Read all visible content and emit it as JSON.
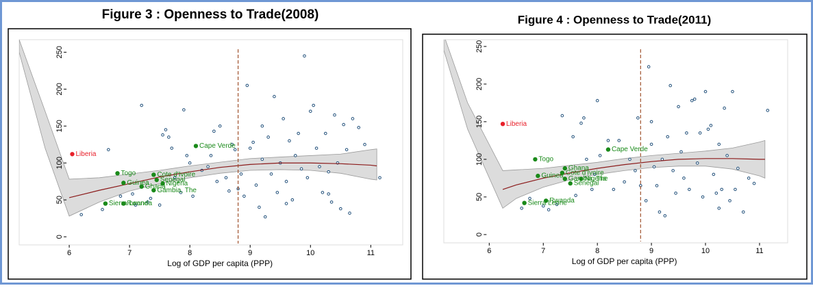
{
  "chart_data": [
    {
      "type": "scatter",
      "title": "Figure 3 :  Openness to Trade(2008)",
      "xlabel": "Log of GDP per capita (PPP)",
      "xlim": [
        5.17,
        11.53
      ],
      "ylim": [
        -11,
        267
      ],
      "xticks": [
        6,
        7,
        8,
        9,
        10,
        11
      ],
      "yticks": [
        0,
        50,
        100,
        150,
        200,
        250
      ],
      "vline": 8.8,
      "vline_color": "#a0522d",
      "points": {
        "color": "#1f4e79",
        "x": [
          6.2,
          6.55,
          6.65,
          6.85,
          7.05,
          7.1,
          7.2,
          7.3,
          7.35,
          7.5,
          7.55,
          7.6,
          7.65,
          7.7,
          7.75,
          7.85,
          7.9,
          7.95,
          8.0,
          8.05,
          8.2,
          8.3,
          8.35,
          8.4,
          8.45,
          8.5,
          8.6,
          8.65,
          8.7,
          8.75,
          8.85,
          8.9,
          8.95,
          9.0,
          9.05,
          9.1,
          9.15,
          9.2,
          9.25,
          9.3,
          9.35,
          9.4,
          9.45,
          9.5,
          9.55,
          9.6,
          9.65,
          9.7,
          9.75,
          9.8,
          9.85,
          9.9,
          9.95,
          10.0,
          10.05,
          10.1,
          10.15,
          10.2,
          10.25,
          10.3,
          10.35,
          10.4,
          10.45,
          10.5,
          10.55,
          10.6,
          10.65,
          10.7,
          10.8,
          10.9,
          11.15,
          10.3,
          9.2,
          8.8,
          9.6
        ],
        "y": [
          30,
          37,
          118,
          55,
          58,
          43,
          178,
          47,
          52,
          43,
          138,
          145,
          135,
          120,
          80,
          60,
          172,
          110,
          100,
          55,
          90,
          95,
          110,
          143,
          75,
          150,
          80,
          62,
          125,
          118,
          85,
          55,
          205,
          120,
          128,
          70,
          40,
          105,
          27,
          135,
          85,
          190,
          60,
          100,
          160,
          75,
          130,
          50,
          110,
          140,
          92,
          245,
          80,
          170,
          178,
          120,
          95,
          60,
          140,
          58,
          47,
          165,
          100,
          38,
          152,
          118,
          32,
          160,
          148,
          125,
          80,
          88,
          150,
          65,
          45
        ]
      },
      "labels": [
        {
          "text": "Liberia",
          "x": 6.05,
          "y": 112,
          "color": "#e8202a"
        },
        {
          "text": "Togo",
          "x": 6.8,
          "y": 86,
          "color": "#1a8a1a"
        },
        {
          "text": "Guinea",
          "x": 6.9,
          "y": 73,
          "color": "#1a8a1a"
        },
        {
          "text": "Sierra Leone",
          "x": 6.6,
          "y": 45,
          "color": "#1a8a1a"
        },
        {
          "text": "Rwanda",
          "x": 6.9,
          "y": 45,
          "color": "#1a8a1a"
        },
        {
          "text": "Ghana",
          "x": 7.2,
          "y": 68,
          "color": "#1a8a1a"
        },
        {
          "text": "Cote d'Ivoire",
          "x": 7.4,
          "y": 84,
          "color": "#1a8a1a"
        },
        {
          "text": "Senegal",
          "x": 7.45,
          "y": 77,
          "color": "#1a8a1a"
        },
        {
          "text": "Nigeria",
          "x": 7.55,
          "y": 72,
          "color": "#1a8a1a"
        },
        {
          "text": "Gambia, The",
          "x": 7.4,
          "y": 63,
          "color": "#1a8a1a"
        },
        {
          "text": "Cape Verde",
          "x": 8.1,
          "y": 123,
          "color": "#1a8a1a"
        }
      ],
      "band": {
        "color": "#dcdcdc",
        "x": [
          5.17,
          5.6,
          6.0,
          6.5,
          7,
          7.5,
          8,
          8.5,
          9,
          9.5,
          10,
          10.5,
          11,
          11.1
        ],
        "upper": [
          267,
          170,
          78,
          80,
          85,
          90,
          96,
          101,
          106,
          108,
          110,
          112,
          118,
          119
        ],
        "lower": [
          250,
          120,
          28,
          47,
          62,
          72,
          80,
          86,
          90,
          91,
          90,
          86,
          78,
          77
        ]
      },
      "fit": {
        "color": "#8b1a1a",
        "x": [
          6.0,
          6.5,
          7,
          7.5,
          8,
          8.5,
          9,
          9.5,
          10,
          10.5,
          11,
          11.1
        ],
        "values": [
          53,
          63,
          72,
          81,
          88,
          94,
          98,
          100,
          100,
          99,
          97,
          96
        ]
      }
    },
    {
      "type": "scatter",
      "title": "Figure 4 : Openness to Trade(2011)",
      "xlabel": "Log of GDP per capita (PPP)",
      "xlim": [
        5.16,
        11.52
      ],
      "ylim": [
        -11,
        259
      ],
      "xticks": [
        6,
        7,
        8,
        9,
        10,
        11
      ],
      "yticks": [
        0,
        50,
        100,
        150,
        200,
        250
      ],
      "vline": 8.8,
      "vline_color": "#a0522d",
      "points": {
        "color": "#1f4e79",
        "x": [
          6.6,
          6.75,
          7.0,
          7.1,
          7.25,
          7.35,
          7.55,
          7.6,
          7.7,
          7.75,
          7.8,
          7.9,
          7.95,
          8.0,
          8.05,
          8.2,
          8.3,
          8.4,
          8.5,
          8.6,
          8.7,
          8.8,
          8.9,
          8.95,
          9.0,
          9.05,
          9.1,
          9.15,
          9.2,
          9.25,
          9.3,
          9.35,
          9.4,
          9.45,
          9.5,
          9.55,
          9.6,
          9.65,
          9.7,
          9.75,
          9.8,
          9.85,
          9.9,
          9.95,
          10.0,
          10.05,
          10.1,
          10.15,
          10.2,
          10.25,
          10.3,
          10.35,
          10.4,
          10.45,
          10.5,
          10.55,
          10.6,
          10.7,
          10.8,
          10.9,
          11.15,
          10.25,
          9.0,
          8.75
        ],
        "y": [
          35,
          48,
          38,
          33,
          40,
          158,
          130,
          52,
          148,
          155,
          100,
          60,
          80,
          178,
          105,
          125,
          60,
          125,
          70,
          100,
          85,
          65,
          45,
          223,
          120,
          90,
          65,
          30,
          100,
          25,
          130,
          198,
          85,
          55,
          170,
          110,
          75,
          135,
          60,
          178,
          180,
          95,
          135,
          50,
          190,
          140,
          145,
          80,
          55,
          120,
          60,
          168,
          105,
          45,
          190,
          60,
          88,
          30,
          75,
          68,
          165,
          35,
          150,
          155
        ]
      },
      "labels": [
        {
          "text": "Liberia",
          "x": 6.25,
          "y": 147,
          "color": "#e8202a"
        },
        {
          "text": "Togo",
          "x": 6.85,
          "y": 100,
          "color": "#1a8a1a"
        },
        {
          "text": "Guinea",
          "x": 6.9,
          "y": 78,
          "color": "#1a8a1a"
        },
        {
          "text": "Ghana",
          "x": 7.4,
          "y": 88,
          "color": "#1a8a1a"
        },
        {
          "text": "Cote d'Ivoire",
          "x": 7.35,
          "y": 82,
          "color": "#1a8a1a"
        },
        {
          "text": "Gambia, The",
          "x": 7.4,
          "y": 74,
          "color": "#1a8a1a"
        },
        {
          "text": "Nigeria",
          "x": 7.7,
          "y": 74,
          "color": "#1a8a1a"
        },
        {
          "text": "Senegal",
          "x": 7.5,
          "y": 68,
          "color": "#1a8a1a"
        },
        {
          "text": "Cape Verde",
          "x": 8.2,
          "y": 113,
          "color": "#1a8a1a"
        },
        {
          "text": "Sierra Leone",
          "x": 6.65,
          "y": 42,
          "color": "#1a8a1a"
        },
        {
          "text": "Rwanda",
          "x": 7.05,
          "y": 45,
          "color": "#1a8a1a"
        }
      ],
      "band": {
        "color": "#dcdcdc",
        "x": [
          5.16,
          5.6,
          6.25,
          6.5,
          7,
          7.5,
          8,
          8.5,
          9,
          9.5,
          10,
          10.5,
          11,
          11.1
        ],
        "upper": [
          265,
          175,
          85,
          86,
          88,
          92,
          96,
          101,
          105,
          108,
          111,
          115,
          123,
          125
        ],
        "lower": [
          245,
          140,
          35,
          48,
          63,
          73,
          80,
          85,
          89,
          91,
          91,
          87,
          78,
          75
        ]
      },
      "fit": {
        "color": "#8b1a1a",
        "x": [
          6.25,
          6.5,
          7,
          7.5,
          8,
          8.5,
          9,
          9.5,
          10,
          10.5,
          11,
          11.1
        ],
        "values": [
          60,
          66,
          75,
          82,
          88,
          93,
          97,
          100,
          101,
          101,
          100,
          100
        ]
      }
    }
  ]
}
